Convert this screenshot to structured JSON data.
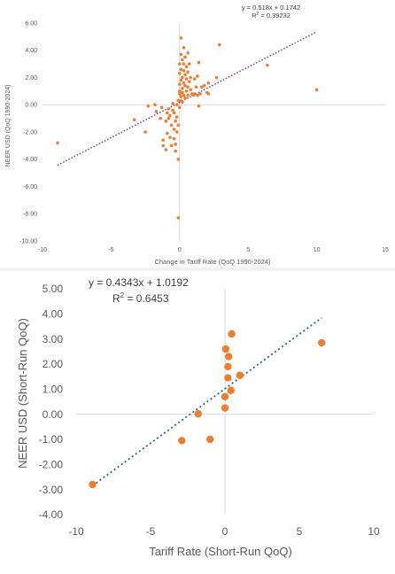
{
  "chart_data": [
    {
      "type": "scatter",
      "title": "",
      "xlabel": "Change in Tariff Rate (QoQ 1990-2024)",
      "ylabel": "NEER USD (QoQ 1990-2024)",
      "xlim": [
        -10,
        15
      ],
      "ylim": [
        -10,
        6
      ],
      "xticks": [
        -10,
        -5,
        0,
        5,
        10,
        15
      ],
      "yticks": [
        6,
        4,
        2,
        0,
        -2,
        -4,
        -6,
        -8,
        -10
      ],
      "x_tick_labels": [
        "-10",
        "-5",
        "0",
        "5",
        "10",
        "15"
      ],
      "y_tick_labels": [
        "6.00",
        "4.00",
        "2.00",
        "0.00",
        "-2.00",
        "-4.00",
        "-6.00",
        "-8.00",
        "-10.00"
      ],
      "grid": false,
      "marker_color": "#ED7D31",
      "trendline_color": "#7030A0",
      "trendline": {
        "slope": 0.518,
        "intercept": 0.1742,
        "x_range": [
          -8.9,
          10
        ],
        "equation": "y = 0.518x + 0.1742",
        "r2_prefix": "R",
        "r2_sup": "2",
        "r2_value": " = 0.39232"
      },
      "points": [
        [
          -8.9,
          -2.8
        ],
        [
          -3.3,
          -1.1
        ],
        [
          -2.5,
          -2.0
        ],
        [
          -2.3,
          -0.1
        ],
        [
          -1.8,
          0.0
        ],
        [
          -1.7,
          -0.5
        ],
        [
          -1.4,
          -1.0
        ],
        [
          -1.3,
          -0.2
        ],
        [
          -1.2,
          -2.6
        ],
        [
          -1.2,
          -3.0
        ],
        [
          -1.0,
          -1.2
        ],
        [
          -1.0,
          -3.3
        ],
        [
          -0.9,
          -0.6
        ],
        [
          -0.9,
          -2.1
        ],
        [
          -0.8,
          -0.3
        ],
        [
          -0.8,
          -1.0
        ],
        [
          -0.7,
          -0.8
        ],
        [
          -0.7,
          -2.4
        ],
        [
          -0.6,
          -1.5
        ],
        [
          -0.6,
          -3.0
        ],
        [
          -0.5,
          0.1
        ],
        [
          -0.5,
          -0.4
        ],
        [
          -0.4,
          -0.6
        ],
        [
          -0.4,
          -1.8
        ],
        [
          -0.4,
          -2.5
        ],
        [
          -0.3,
          -3.4
        ],
        [
          -0.3,
          -1.2
        ],
        [
          -0.3,
          -2.9
        ],
        [
          -0.2,
          0.0
        ],
        [
          -0.2,
          -0.9
        ],
        [
          -0.2,
          -2.0
        ],
        [
          -0.1,
          -4.0
        ],
        [
          -0.1,
          -8.3
        ],
        [
          -0.1,
          0.3
        ],
        [
          -0.1,
          -1.5
        ],
        [
          0.0,
          2.3
        ],
        [
          0.0,
          1.5
        ],
        [
          0.0,
          0.8
        ],
        [
          0.0,
          -0.2
        ],
        [
          0.0,
          3.0
        ],
        [
          0.0,
          1.0
        ],
        [
          0.1,
          4.9
        ],
        [
          0.1,
          3.7
        ],
        [
          0.1,
          2.6
        ],
        [
          0.1,
          1.8
        ],
        [
          0.1,
          0.6
        ],
        [
          0.1,
          0.3
        ],
        [
          0.2,
          3.3
        ],
        [
          0.2,
          2.0
        ],
        [
          0.2,
          1.2
        ],
        [
          0.2,
          0.9
        ],
        [
          0.2,
          0.2
        ],
        [
          0.3,
          4.2
        ],
        [
          0.3,
          3.0
        ],
        [
          0.3,
          2.5
        ],
        [
          0.3,
          1.6
        ],
        [
          0.3,
          0.7
        ],
        [
          0.4,
          3.5
        ],
        [
          0.4,
          2.2
        ],
        [
          0.4,
          1.4
        ],
        [
          0.4,
          0.5
        ],
        [
          0.5,
          2.8
        ],
        [
          0.5,
          1.9
        ],
        [
          0.5,
          1.0
        ],
        [
          0.6,
          3.8
        ],
        [
          0.6,
          2.4
        ],
        [
          0.6,
          1.3
        ],
        [
          0.6,
          0.7
        ],
        [
          0.7,
          3.0
        ],
        [
          0.7,
          1.7
        ],
        [
          0.8,
          1.1
        ],
        [
          0.8,
          2.0
        ],
        [
          0.9,
          0.8
        ],
        [
          1.0,
          0.7
        ],
        [
          1.1,
          1.9
        ],
        [
          1.1,
          0.8
        ],
        [
          1.2,
          1.3
        ],
        [
          1.3,
          2.1
        ],
        [
          1.3,
          0.7
        ],
        [
          1.4,
          3.1
        ],
        [
          1.4,
          -0.1
        ],
        [
          1.5,
          0.8
        ],
        [
          1.6,
          1.3
        ],
        [
          1.8,
          1.4
        ],
        [
          2.0,
          0.9
        ],
        [
          2.1,
          1.6
        ],
        [
          2.1,
          0.8
        ],
        [
          2.7,
          2.0
        ],
        [
          2.9,
          4.4
        ],
        [
          6.4,
          2.9
        ],
        [
          10.0,
          1.1
        ]
      ]
    },
    {
      "type": "scatter",
      "title": "",
      "xlabel": "Tariff Rate (Short-Run QoQ)",
      "ylabel": "NEER USD (Short-Run QoQ)",
      "xlim": [
        -10,
        10
      ],
      "ylim": [
        -4,
        5
      ],
      "xticks": [
        -10,
        -5,
        0,
        5,
        10
      ],
      "yticks": [
        5,
        4,
        3,
        2,
        1,
        0,
        -1,
        -2,
        -3,
        -4
      ],
      "x_tick_labels": [
        "-10",
        "-5",
        "0",
        "5",
        "10"
      ],
      "y_tick_labels": [
        "5.00",
        "4.00",
        "3.00",
        "2.00",
        "1.00",
        "0.00",
        "-1.00",
        "-2.00",
        "-3.00",
        "-4.00"
      ],
      "grid": false,
      "marker_color": "#ED7D31",
      "trendline_color": "#1F6E78",
      "trendline": {
        "slope": 0.4343,
        "intercept": 1.0192,
        "x_range": [
          -8.9,
          6.5
        ],
        "equation": "y = 0.4343x + 1.0192",
        "r2_prefix": "R",
        "r2_sup": "2",
        "r2_value": " = 0.6453"
      },
      "points": [
        [
          -8.9,
          -2.8
        ],
        [
          -2.9,
          -1.05
        ],
        [
          -1.8,
          0.02
        ],
        [
          -1.0,
          -1.0
        ],
        [
          0.0,
          0.25
        ],
        [
          0.0,
          0.7
        ],
        [
          0.05,
          2.6
        ],
        [
          0.2,
          1.45
        ],
        [
          0.2,
          1.9
        ],
        [
          0.25,
          2.3
        ],
        [
          0.4,
          0.95
        ],
        [
          0.45,
          3.2
        ],
        [
          1.0,
          1.55
        ],
        [
          6.5,
          2.85
        ]
      ]
    }
  ]
}
